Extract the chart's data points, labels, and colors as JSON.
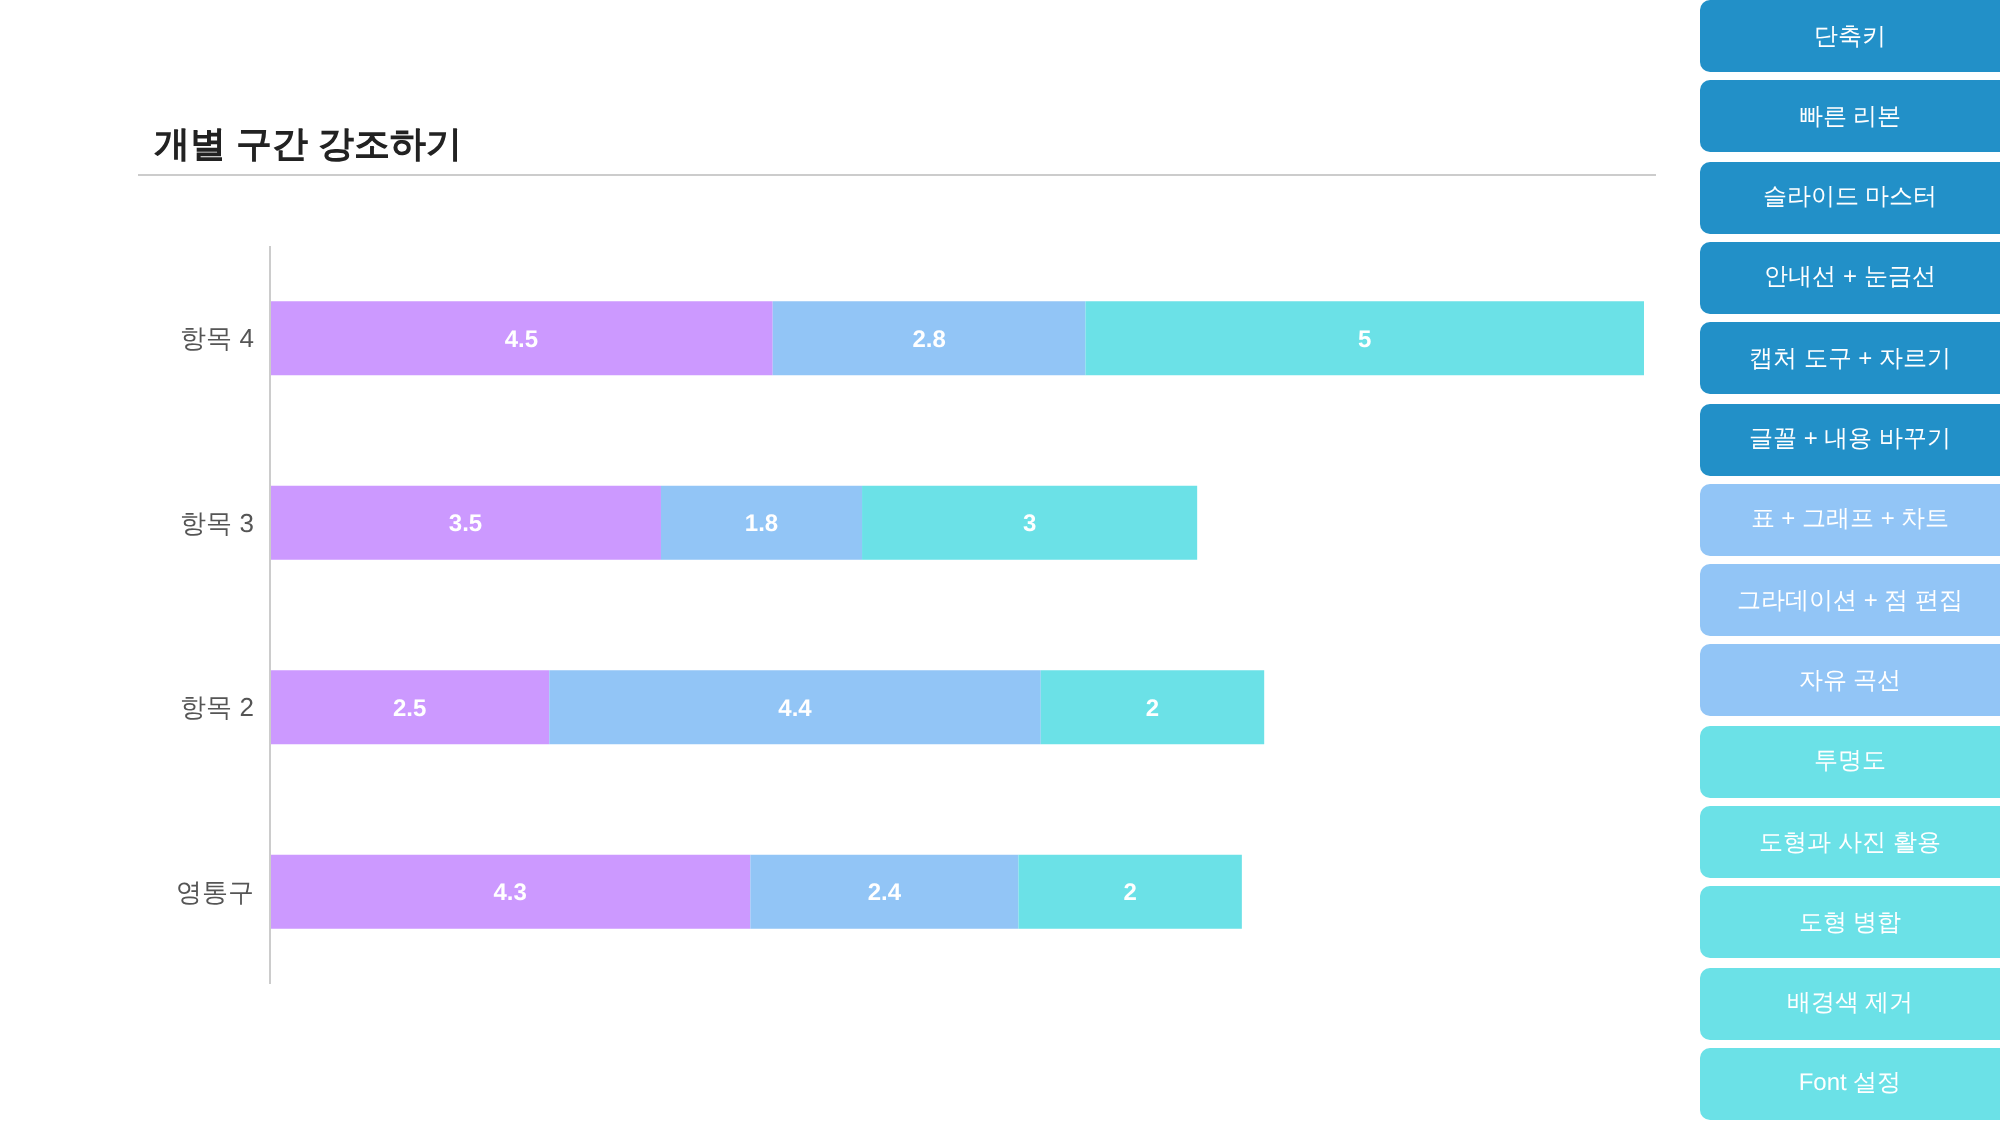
{
  "chart_data": [
    {
      "type": "bar",
      "title": "개별 구간 강조하기",
      "orientation": "horizontal",
      "stacked": true,
      "categories": [
        "항목 4",
        "항목 3",
        "항목 2",
        "영통구"
      ],
      "series": [
        {
          "color": "#cc99ff",
          "values": [
            4.5,
            3.5,
            2.5,
            4.3
          ]
        },
        {
          "color": "#92c5f6",
          "values": [
            2.8,
            1.8,
            4.4,
            2.4
          ]
        },
        {
          "color": "#6be1e7",
          "values": [
            5,
            3,
            2,
            2
          ]
        }
      ],
      "data_labels": true,
      "tick_labels": "y"
    },
    {
      "type": "other",
      "annotations": [
        "단축키",
        "빠른 리본",
        "슬라이드 마스터",
        "안내선 + 눈금선",
        "캡처 도구 + 자르기",
        "글꼴 + 내용 바꾸기",
        "표 + 그래프 + 차트",
        "그라데이션 + 점 편집",
        "자유 곡선",
        "투명도",
        "도형과 사진 활용",
        "도형 병합",
        "배경색 제거",
        "Font 설정"
      ],
      "colors": [
        "#2290c8",
        "#2290c8",
        "#2290c8",
        "#2290c8",
        "#2290c8",
        "#2290c8",
        "#92c5f6",
        "#92c5f6",
        "#92c5f6",
        "#6be1e7",
        "#6be1e7",
        "#6be1e7",
        "#6be1e7",
        "#6be1e7"
      ]
    }
  ]
}
